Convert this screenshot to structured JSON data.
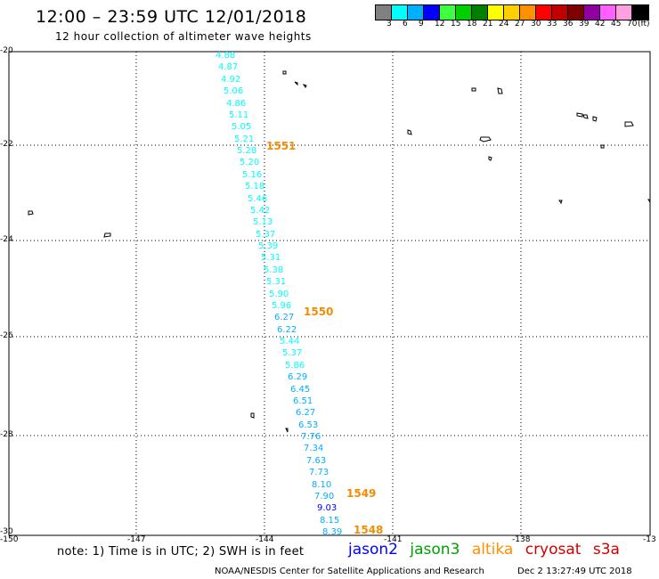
{
  "title": "12:00 – 23:59 UTC 12/01/2018",
  "subtitle": "12 hour collection of altimeter wave heights",
  "colorbar": {
    "colors": [
      "#808080",
      "#00ffff",
      "#00b0ff",
      "#0000ff",
      "#40ff40",
      "#00d000",
      "#008000",
      "#ffff00",
      "#ffd000",
      "#ff9000",
      "#ff0000",
      "#c00000",
      "#800000",
      "#9000a0",
      "#ff60ff",
      "#ffa0e0",
      "#000000"
    ],
    "labels": [
      "3",
      "6",
      "9",
      "12",
      "15",
      "18",
      "21",
      "24",
      "27",
      "30",
      "33",
      "36",
      "39",
      "42",
      "45",
      "70",
      "(ft)"
    ]
  },
  "lat_labels": [
    "-20",
    "-22",
    "-24",
    "-26",
    "-28",
    "-30"
  ],
  "lon_labels": [
    "-150",
    "-147",
    "-144",
    "-141",
    "-138",
    "-13"
  ],
  "wave_values": [
    "4.88",
    "4.87",
    "4.92",
    "5.06",
    "4.86",
    "5.11",
    "5.05",
    "5.21",
    "5.28",
    "5.20",
    "5.16",
    "5.18",
    "5.46",
    "5.42",
    "5.13",
    "5.37",
    "5.39",
    "5.31",
    "5.38",
    "5.31",
    "5.90",
    "5.96",
    "6.27",
    "6.22",
    "5.44",
    "5.37",
    "5.86",
    "6.29",
    "6.45",
    "6.51",
    "6.27",
    "6.53",
    "7.76",
    "7.34",
    "7.63",
    "7.73",
    "8.10",
    "7.90",
    "9.03",
    "8.15",
    "8.39"
  ],
  "rev_labels": [
    "1551",
    "1550",
    "1549",
    "1548"
  ],
  "legend": {
    "jason2": "jason2",
    "jason3": "jason3",
    "altika": "altika",
    "cryosat": "cryosat",
    "s3a": "s3a"
  },
  "legend_colors": {
    "jason2": "#0000ff",
    "jason3": "#00a000",
    "altika": "#ff9000",
    "cryosat": "#d00000",
    "s3a": "#d00000"
  },
  "note": "note: 1) Time is in UTC; 2) SWH is in feet",
  "credit": "NOAA/NESDIS Center for Satellite Applications and Research",
  "credit_time": "Dec  2 13:27:49 UTC 2018"
}
